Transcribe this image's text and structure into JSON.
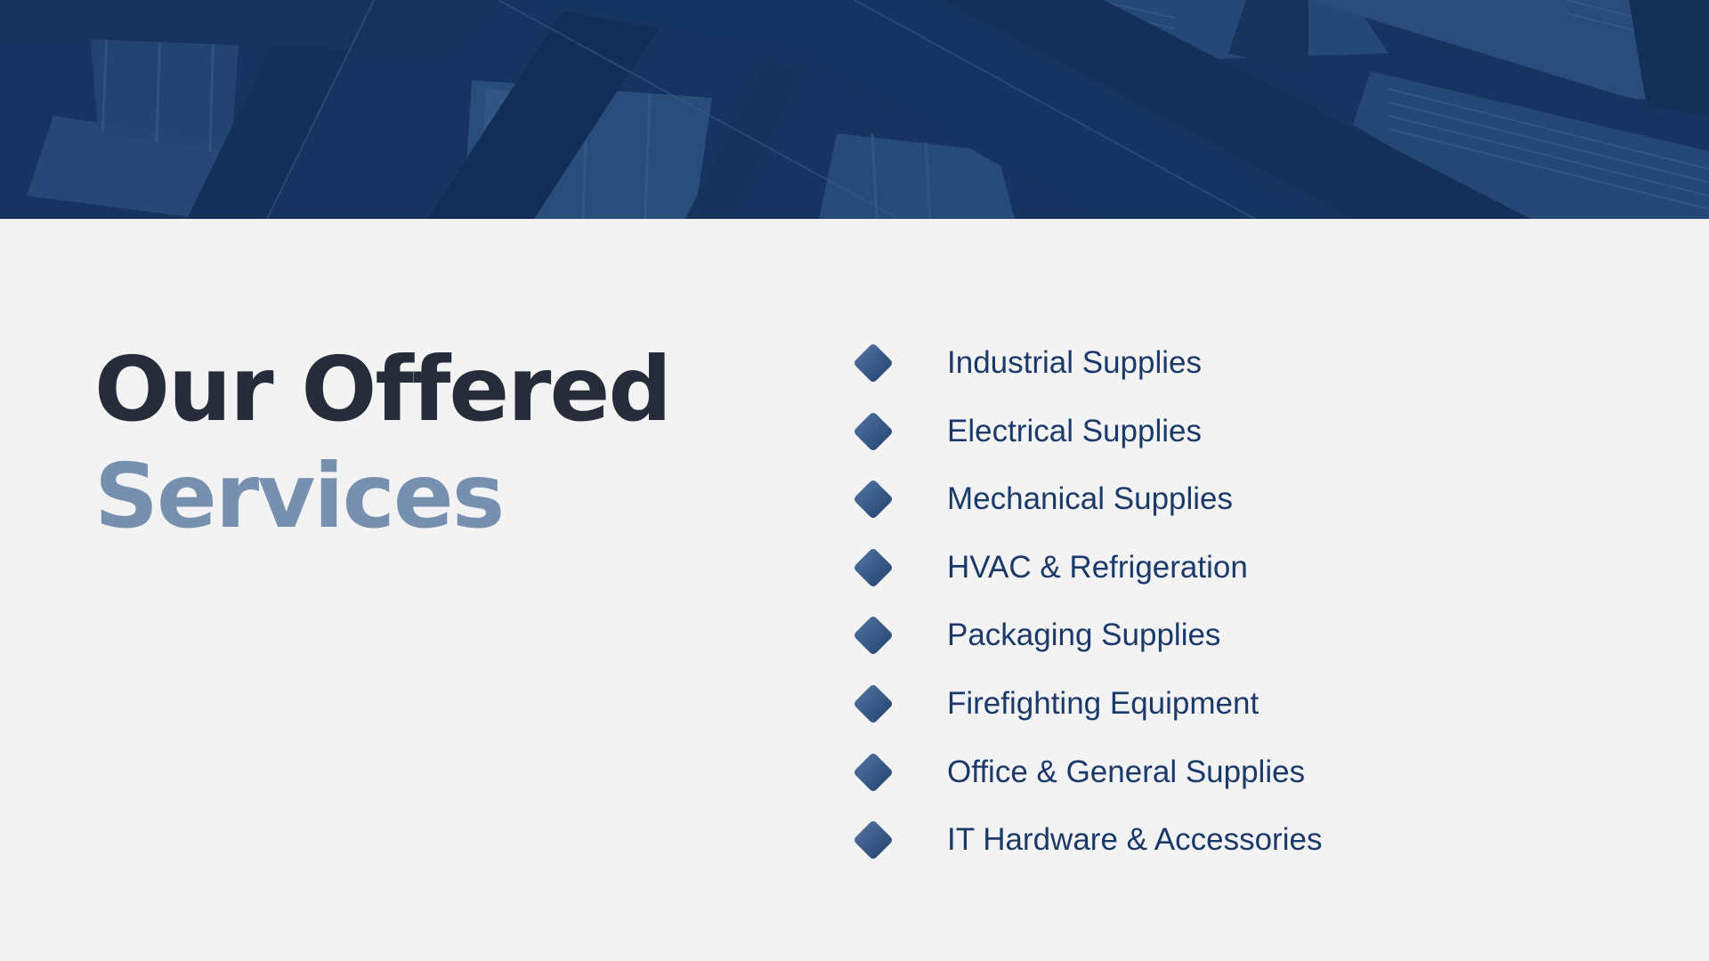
{
  "banner": {
    "image": "building-structure-photo",
    "overlay_color": "#16355f"
  },
  "title": {
    "line1": "Our Offered",
    "line2": "Services",
    "line1_color": "#272c3b",
    "line2_color": "#7890b0"
  },
  "services": {
    "bullet_icon": "diamond-icon",
    "bullet_color": "#2e5386",
    "text_color": "#1b3a69",
    "items": [
      {
        "label": "Industrial Supplies"
      },
      {
        "label": "Electrical Supplies"
      },
      {
        "label": "Mechanical Supplies"
      },
      {
        "label": "HVAC & Refrigeration"
      },
      {
        "label": "Packaging Supplies"
      },
      {
        "label": "Firefighting Equipment"
      },
      {
        "label": "Office & General Supplies"
      },
      {
        "label": "IT Hardware & Accessories"
      }
    ]
  }
}
